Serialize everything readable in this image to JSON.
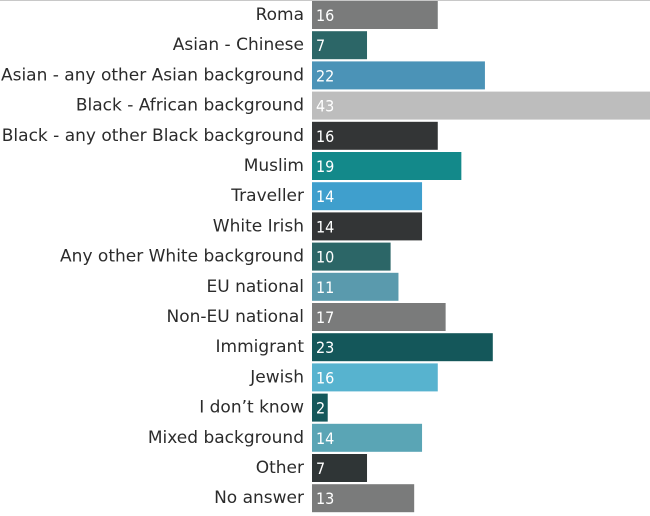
{
  "chart_data": {
    "type": "bar",
    "orientation": "horizontal",
    "title": "",
    "xlabel": "",
    "ylabel": "",
    "xlim": [
      0,
      43
    ],
    "grid": false,
    "legend": "none",
    "categories": [
      "Roma",
      "Asian - Chinese",
      "Asian - any other Asian background",
      "Black - African background",
      "Black - any other Black background",
      "Muslim",
      "Traveller",
      "White Irish",
      "Any other White background",
      "EU national",
      "Non-EU national",
      "Immigrant",
      "Jewish",
      "I don’t know",
      "Mixed background",
      "Other",
      "No answer"
    ],
    "values": [
      16,
      7,
      22,
      43,
      16,
      19,
      14,
      14,
      10,
      11,
      17,
      23,
      16,
      2,
      14,
      7,
      13
    ],
    "bar_colors": [
      "#7a7b7b",
      "#2c6667",
      "#4b93b7",
      "#bdbdbd",
      "#333536",
      "#13898a",
      "#3f9fcd",
      "#333536",
      "#2c6667",
      "#5a9aad",
      "#7a7b7b",
      "#14575a",
      "#57b3cf",
      "#14575a",
      "#5aa5b5",
      "#2f3536",
      "#7a7b7b"
    ]
  }
}
